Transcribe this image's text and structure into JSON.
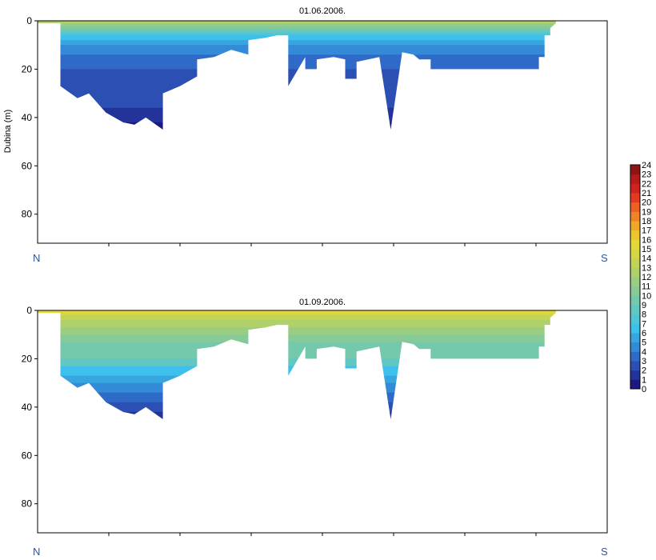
{
  "chart_data": [
    {
      "type": "heatmap",
      "title": "01.06.2006.",
      "ylabel": "Dubina (m)",
      "ylim": [
        0,
        92
      ],
      "yticks": [
        0,
        20,
        40,
        60,
        80
      ],
      "y_inverted": true,
      "x_direction": {
        "left": "N",
        "right": "S"
      },
      "bottom_depth": [
        [
          0,
          1
        ],
        [
          0.04,
          1
        ],
        [
          0.04,
          27
        ],
        [
          0.07,
          32
        ],
        [
          0.09,
          30
        ],
        [
          0.12,
          38
        ],
        [
          0.15,
          42
        ],
        [
          0.17,
          43
        ],
        [
          0.19,
          40
        ],
        [
          0.22,
          45
        ],
        [
          0.22,
          30
        ],
        [
          0.25,
          27
        ],
        [
          0.28,
          23
        ],
        [
          0.28,
          16
        ],
        [
          0.31,
          15
        ],
        [
          0.34,
          12
        ],
        [
          0.37,
          14
        ],
        [
          0.37,
          8
        ],
        [
          0.4,
          7
        ],
        [
          0.42,
          6
        ],
        [
          0.44,
          6
        ],
        [
          0.44,
          27
        ],
        [
          0.47,
          15
        ],
        [
          0.47,
          20
        ],
        [
          0.49,
          20
        ],
        [
          0.49,
          16
        ],
        [
          0.52,
          15
        ],
        [
          0.54,
          16
        ],
        [
          0.54,
          24
        ],
        [
          0.56,
          24
        ],
        [
          0.56,
          17
        ],
        [
          0.6,
          15
        ],
        [
          0.62,
          45
        ],
        [
          0.64,
          13
        ],
        [
          0.66,
          14
        ],
        [
          0.67,
          16
        ],
        [
          0.69,
          16
        ],
        [
          0.69,
          20
        ],
        [
          0.73,
          20
        ],
        [
          0.88,
          20
        ],
        [
          0.88,
          15
        ],
        [
          0.89,
          15
        ],
        [
          0.89,
          6
        ],
        [
          0.9,
          6
        ],
        [
          0.9,
          3
        ],
        [
          0.91,
          1
        ]
      ],
      "depth_bands": [
        {
          "top": 0,
          "bottom": 1,
          "value": 12
        },
        {
          "top": 1,
          "bottom": 2,
          "value": 11
        },
        {
          "top": 2,
          "bottom": 3,
          "value": 10
        },
        {
          "top": 3,
          "bottom": 4,
          "value": 9
        },
        {
          "top": 4,
          "bottom": 5,
          "value": 8
        },
        {
          "top": 5,
          "bottom": 6,
          "value": 7
        },
        {
          "top": 6,
          "bottom": 8,
          "value": 6
        },
        {
          "top": 8,
          "bottom": 10,
          "value": 5
        },
        {
          "top": 10,
          "bottom": 14,
          "value": 4
        },
        {
          "top": 14,
          "bottom": 20,
          "value": 3
        },
        {
          "top": 20,
          "bottom": 36,
          "value": 2
        },
        {
          "top": 36,
          "bottom": 42,
          "value": 1
        },
        {
          "top": 42,
          "bottom": 92,
          "value": 0
        }
      ]
    },
    {
      "type": "heatmap",
      "title": "01.09.2006.",
      "ylabel": "",
      "ylim": [
        0,
        92
      ],
      "yticks": [
        0,
        20,
        40,
        60,
        80
      ],
      "y_inverted": true,
      "x_direction": {
        "left": "N",
        "right": "S"
      },
      "bottom_depth": "same as 01.06.2006.",
      "depth_bands": [
        {
          "top": 0,
          "bottom": 1,
          "value": 15
        },
        {
          "top": 1,
          "bottom": 2,
          "value": 14
        },
        {
          "top": 2,
          "bottom": 4,
          "value": 13
        },
        {
          "top": 4,
          "bottom": 7,
          "value": 12
        },
        {
          "top": 7,
          "bottom": 10,
          "value": 11
        },
        {
          "top": 10,
          "bottom": 13,
          "value": 10
        },
        {
          "top": 13,
          "bottom": 20,
          "value": 9
        },
        {
          "top": 20,
          "bottom": 23,
          "value": 8
        },
        {
          "top": 23,
          "bottom": 27,
          "value": 6
        },
        {
          "top": 27,
          "bottom": 30,
          "value": 5
        },
        {
          "top": 30,
          "bottom": 34,
          "value": 4
        },
        {
          "top": 34,
          "bottom": 38,
          "value": 3
        },
        {
          "top": 38,
          "bottom": 42,
          "value": 2
        },
        {
          "top": 42,
          "bottom": 92,
          "value": 1
        }
      ]
    }
  ],
  "colorbar": {
    "ticks": [
      "24",
      "23",
      "22",
      "21",
      "20",
      "19",
      "18",
      "17",
      "16",
      "15",
      "14",
      "13",
      "12",
      "11",
      "10",
      "9",
      "8",
      "7",
      "6",
      "5",
      "4",
      "3",
      "2",
      "1",
      "0"
    ],
    "colors": [
      "#1c1a80",
      "#24339a",
      "#2b4fb2",
      "#2f6ac8",
      "#338ad6",
      "#37a6df",
      "#3dc0ec",
      "#4fc6d8",
      "#62c6c2",
      "#74c8ac",
      "#88ca96",
      "#9bcd80",
      "#afd06a",
      "#c3d356",
      "#d5d644",
      "#e2d937",
      "#ecc52c",
      "#f0a626",
      "#f08325",
      "#ee5f24",
      "#e53a22",
      "#d0231f",
      "#b41b1a",
      "#8f1414"
    ]
  }
}
